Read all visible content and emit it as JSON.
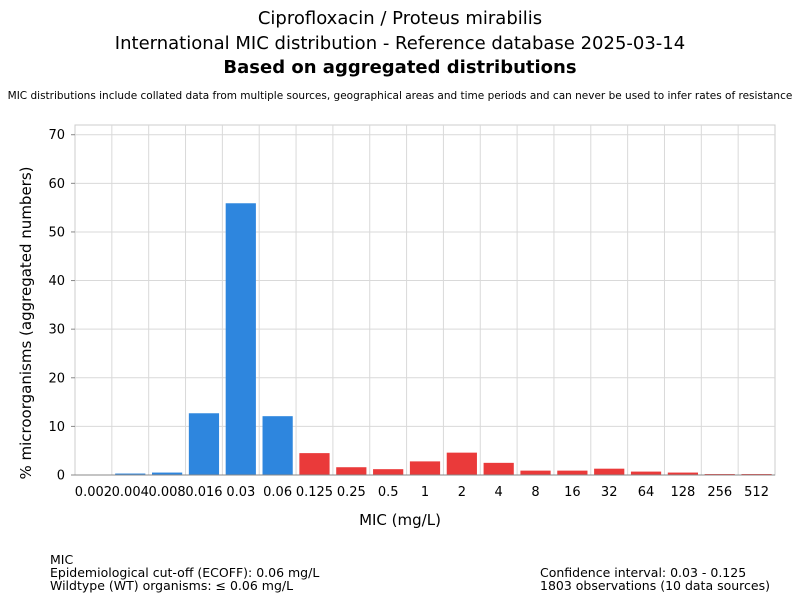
{
  "header": {
    "title_line1": "Ciprofloxacin / Proteus mirabilis",
    "title_line2": "International MIC distribution - Reference database 2025-03-14",
    "title_line3": "Based on aggregated distributions",
    "subtitle": "MIC distributions include collated data from multiple sources, geographical areas and time periods and can never be used to infer rates of resistance"
  },
  "chart_data": {
    "type": "bar",
    "xlabel": "MIC (mg/L)",
    "ylabel": "% microorganisms (aggregated numbers)",
    "ylim": [
      0,
      72
    ],
    "yticks": [
      0,
      10,
      20,
      30,
      40,
      50,
      60,
      70
    ],
    "grid": true,
    "categories": [
      "0.002",
      "0.004",
      "0.008",
      "0.016",
      "0.03",
      "0.06",
      "0.125",
      "0.25",
      "0.5",
      "1",
      "2",
      "4",
      "8",
      "16",
      "32",
      "64",
      "128",
      "256",
      "512"
    ],
    "values": [
      0.1,
      0.3,
      0.5,
      12.7,
      55.9,
      12.1,
      4.5,
      1.6,
      1.2,
      2.8,
      4.6,
      2.5,
      0.9,
      0.9,
      1.3,
      0.7,
      0.5,
      0.2,
      0.2
    ],
    "colors": {
      "wildtype": "#2e86de",
      "non_wildtype": "#ea3a3a"
    },
    "series_status": [
      "wt",
      "wt",
      "wt",
      "wt",
      "wt",
      "wt",
      "nwt",
      "nwt",
      "nwt",
      "nwt",
      "nwt",
      "nwt",
      "nwt",
      "nwt",
      "nwt",
      "nwt",
      "nwt",
      "nwt",
      "nwt"
    ]
  },
  "footer": {
    "mic_label": "MIC",
    "ecoff": "Epidemiological cut-off (ECOFF): 0.06 mg/L",
    "wildtype": "Wildtype (WT) organisms: ≤ 0.06 mg/L",
    "confidence": "Confidence interval: 0.03 - 0.125",
    "observations": "1803 observations (10 data sources)"
  }
}
